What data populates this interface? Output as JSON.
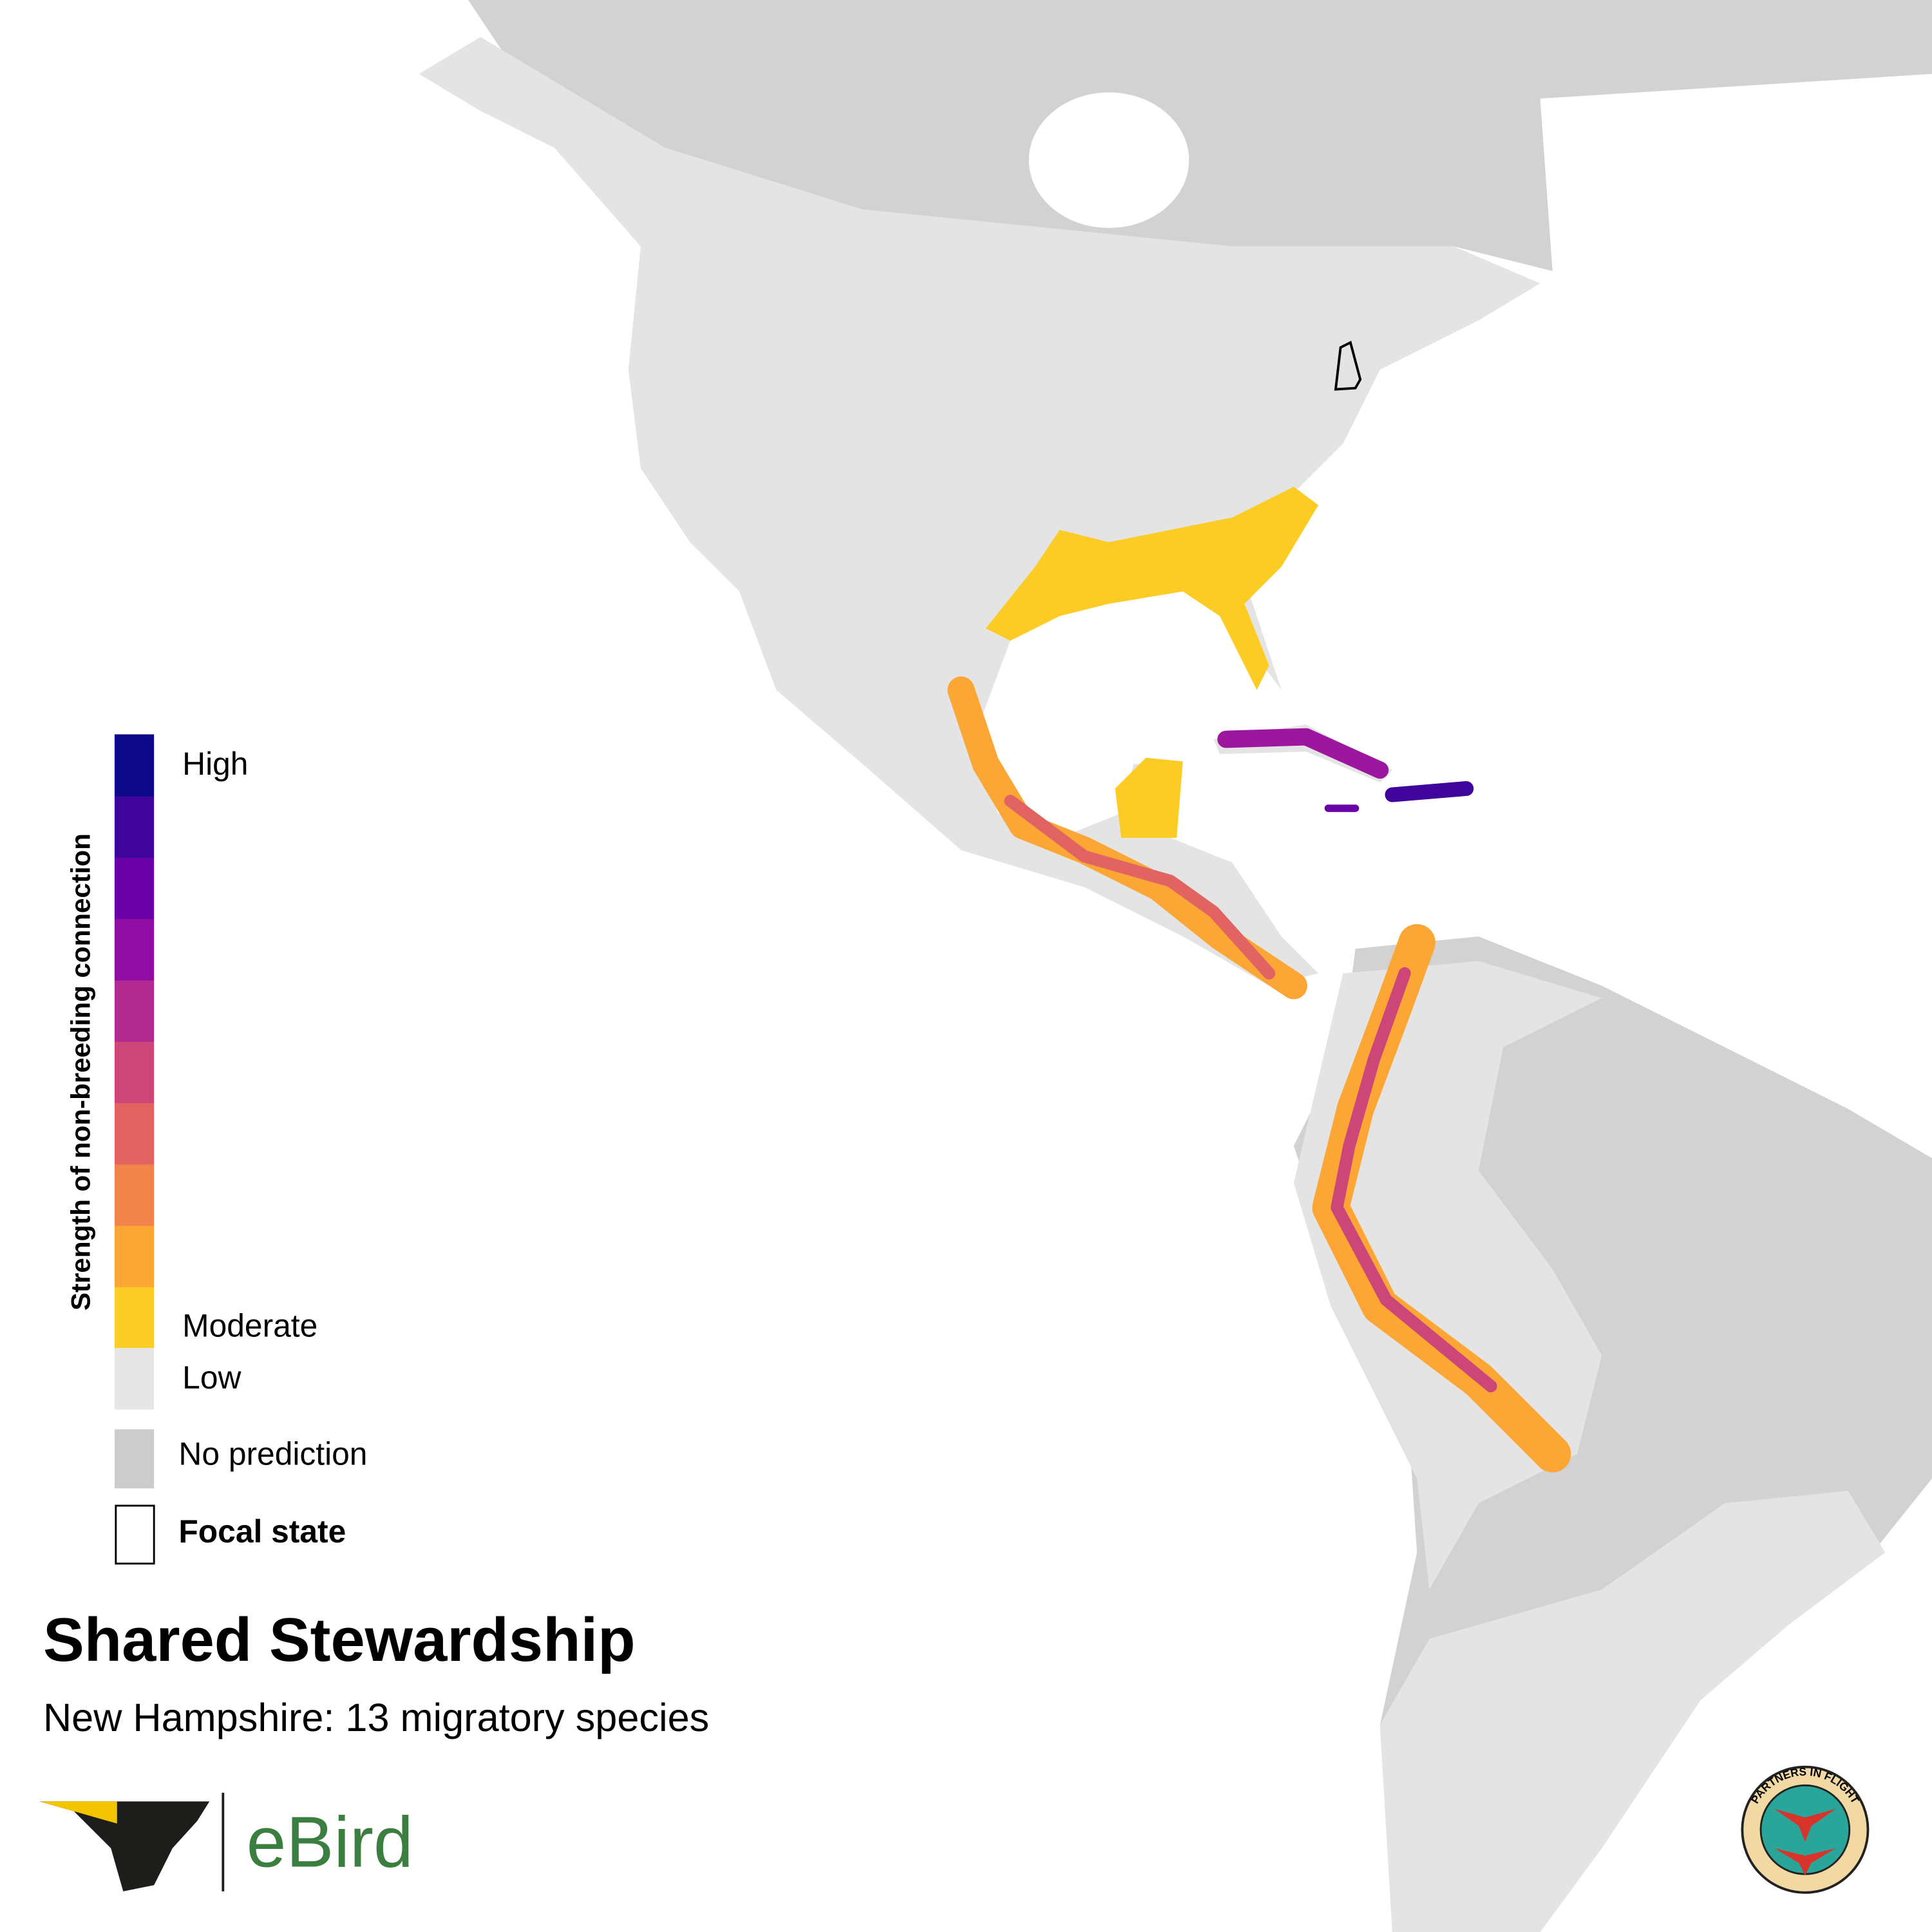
{
  "title": "Shared Stewardship",
  "subtitle": "New Hampshire: 13 migratory species",
  "legend": {
    "title": "Strength of non-breeding connection",
    "colors": [
      "#0d0887",
      "#3e049c",
      "#6a00a8",
      "#900da4",
      "#b12a90",
      "#cc4778",
      "#e16462",
      "#f2844b",
      "#fca636",
      "#fccd25"
    ],
    "labels": {
      "high": "High",
      "moderate": "Moderate",
      "low": "Low",
      "no_prediction": "No prediction",
      "focal_state": "Focal state"
    }
  },
  "logo": {
    "ebird": "eBird",
    "badge": "PARTNERS IN FLIGHT"
  }
}
